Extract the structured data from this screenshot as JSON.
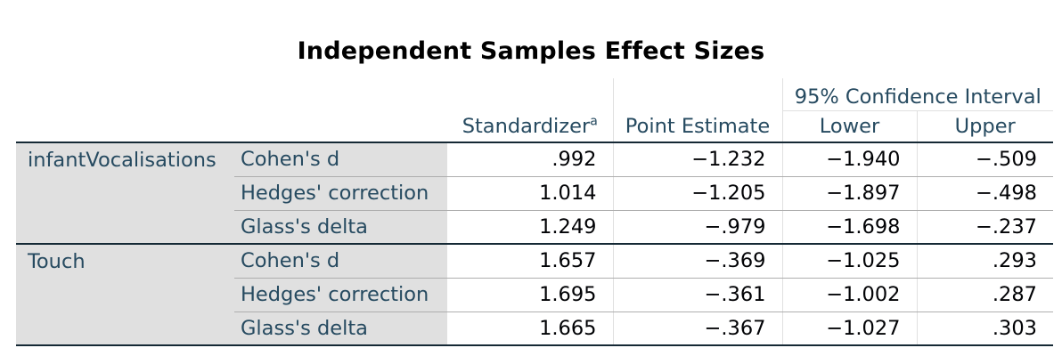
{
  "title": "Independent Samples Effect Sizes",
  "header": {
    "ci_label": "95% Confidence Interval",
    "standardizer": "Standardizer",
    "standardizer_sup": "a",
    "point_estimate": "Point Estimate",
    "lower": "Lower",
    "upper": "Upper"
  },
  "groups": [
    {
      "variable": "infantVocalisations",
      "rows": [
        {
          "measure": "Cohen's d",
          "standardizer": ".992",
          "point_estimate": "−1.232",
          "lower": "−1.940",
          "upper": "−.509"
        },
        {
          "measure": "Hedges' correction",
          "standardizer": "1.014",
          "point_estimate": "−1.205",
          "lower": "−1.897",
          "upper": "−.498"
        },
        {
          "measure": "Glass's delta",
          "standardizer": "1.249",
          "point_estimate": "−.979",
          "lower": "−1.698",
          "upper": "−.237"
        }
      ]
    },
    {
      "variable": "Touch",
      "rows": [
        {
          "measure": "Cohen's d",
          "standardizer": "1.657",
          "point_estimate": "−.369",
          "lower": "−1.025",
          "upper": ".293"
        },
        {
          "measure": "Hedges' correction",
          "standardizer": "1.695",
          "point_estimate": "−.361",
          "lower": "−1.002",
          "upper": ".287"
        },
        {
          "measure": "Glass's delta",
          "standardizer": "1.665",
          "point_estimate": "−.367",
          "lower": "−1.027",
          "upper": ".303"
        }
      ]
    }
  ]
}
